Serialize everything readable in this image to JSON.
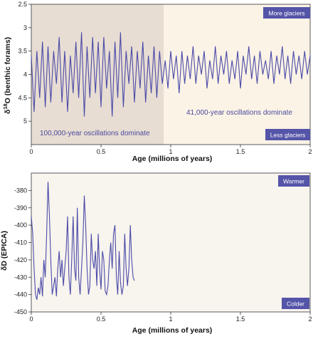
{
  "colors": {
    "line": "#4b4ba8",
    "tag_bg": "#5454a8",
    "shade_100k": "#e8ddd3",
    "shade_41k": "#fbf3e6",
    "panel2_bg": "#f8f4ee",
    "axis": "#333333"
  },
  "chart_data": [
    {
      "type": "line",
      "xlabel": "Age (millions of years)",
      "ylabel": "δ18O (benthic forams)",
      "ylabel_main": "δ",
      "ylabel_sup": "18",
      "ylabel_rest": "O (benthic forams)",
      "xlim": [
        0,
        2
      ],
      "ylim": [
        5.5,
        2.5
      ],
      "y_inverted": true,
      "xticks": [
        "0",
        "0.5",
        "1",
        "1.5",
        "2"
      ],
      "yticks": [
        "2.5",
        "3",
        "3.5",
        "4",
        "4.5",
        "5"
      ],
      "xtick_values": [
        0,
        0.5,
        1,
        1.5,
        2
      ],
      "ytick_values": [
        2.5,
        3,
        3.5,
        4,
        4.5,
        5
      ],
      "regions": [
        {
          "x_range": [
            0,
            0.95
          ],
          "label": "100,000-year oscillations dominate"
        },
        {
          "x_range": [
            0.95,
            2
          ],
          "label": "41,000-year oscillations dominate"
        }
      ],
      "tags": {
        "top": "More glaciers",
        "bottom": "Less glaciers"
      },
      "series": [
        {
          "x": [
            0,
            0.02,
            0.04,
            0.06,
            0.08,
            0.1,
            0.12,
            0.14,
            0.16,
            0.18,
            0.2,
            0.22,
            0.24,
            0.26,
            0.28,
            0.3,
            0.32,
            0.34,
            0.36,
            0.38,
            0.4,
            0.42,
            0.44,
            0.46,
            0.48,
            0.5,
            0.52,
            0.54,
            0.56,
            0.58,
            0.6,
            0.62,
            0.64,
            0.66,
            0.68,
            0.7,
            0.72,
            0.74,
            0.76,
            0.78,
            0.8,
            0.82,
            0.84,
            0.86,
            0.88,
            0.9,
            0.92,
            0.94,
            0.96,
            0.98,
            1.0,
            1.02,
            1.04,
            1.06,
            1.08,
            1.1,
            1.12,
            1.14,
            1.16,
            1.18,
            1.2,
            1.22,
            1.24,
            1.26,
            1.28,
            1.3,
            1.32,
            1.34,
            1.36,
            1.38,
            1.4,
            1.42,
            1.44,
            1.46,
            1.48,
            1.5,
            1.52,
            1.54,
            1.56,
            1.58,
            1.6,
            1.62,
            1.64,
            1.66,
            1.68,
            1.7,
            1.72,
            1.74,
            1.76,
            1.78,
            1.8,
            1.82,
            1.84,
            1.86,
            1.88,
            1.9,
            1.92,
            1.94,
            1.96,
            1.98,
            2.0
          ],
          "y": [
            3.6,
            4.8,
            3.5,
            4.5,
            3.3,
            4.7,
            3.4,
            4.6,
            3.5,
            4.2,
            3.2,
            4.6,
            3.5,
            4.8,
            3.6,
            4.4,
            3.3,
            4.5,
            3.1,
            4.9,
            3.4,
            4.5,
            3.2,
            4.4,
            3.3,
            4.7,
            3.2,
            4.3,
            3.5,
            4.9,
            3.3,
            4.5,
            3.1,
            4.7,
            3.5,
            4.2,
            3.4,
            4.6,
            3.5,
            4.3,
            3.3,
            4.6,
            3.6,
            4.4,
            3.4,
            4.5,
            3.5,
            4.2,
            3.7,
            4.3,
            3.5,
            4.1,
            3.6,
            4.4,
            3.5,
            4.2,
            3.6,
            4.1,
            3.4,
            4.2,
            3.6,
            4.0,
            3.5,
            4.3,
            3.7,
            4.1,
            3.4,
            4.2,
            3.6,
            4.0,
            3.5,
            4.2,
            3.7,
            4.1,
            3.5,
            4.3,
            3.6,
            4.0,
            3.4,
            4.1,
            3.6,
            4.2,
            3.5,
            4.0,
            3.7,
            4.1,
            3.5,
            4.2,
            3.6,
            4.0,
            3.4,
            4.1,
            3.6,
            4.2,
            3.5,
            4.0,
            3.6,
            4.1,
            3.5,
            4.0,
            3.6
          ]
        }
      ]
    },
    {
      "type": "line",
      "xlabel": "Age (millions of years)",
      "ylabel": "δD (EPICA)",
      "xlim": [
        0,
        2
      ],
      "ylim": [
        -450,
        -370
      ],
      "xticks": [
        "0",
        "0.5",
        "1",
        "1.5",
        "2"
      ],
      "yticks": [
        "-380",
        "-390",
        "-400",
        "-410",
        "-420",
        "-430",
        "-440",
        "-450"
      ],
      "xtick_values": [
        0,
        0.5,
        1,
        1.5,
        2
      ],
      "ytick_values": [
        -380,
        -390,
        -400,
        -410,
        -420,
        -430,
        -440,
        -450
      ],
      "tags": {
        "top": "Warmer",
        "bottom": "Colder"
      },
      "series": [
        {
          "x": [
            0,
            0.01,
            0.02,
            0.03,
            0.04,
            0.05,
            0.06,
            0.07,
            0.08,
            0.09,
            0.1,
            0.11,
            0.12,
            0.13,
            0.14,
            0.15,
            0.16,
            0.17,
            0.18,
            0.19,
            0.2,
            0.21,
            0.22,
            0.23,
            0.24,
            0.25,
            0.26,
            0.27,
            0.28,
            0.29,
            0.3,
            0.31,
            0.32,
            0.33,
            0.34,
            0.35,
            0.36,
            0.37,
            0.38,
            0.39,
            0.4,
            0.41,
            0.42,
            0.43,
            0.44,
            0.45,
            0.46,
            0.47,
            0.48,
            0.49,
            0.5,
            0.51,
            0.52,
            0.53,
            0.54,
            0.55,
            0.56,
            0.57,
            0.58,
            0.59,
            0.6,
            0.61,
            0.62,
            0.63,
            0.64,
            0.65,
            0.66,
            0.67,
            0.68,
            0.69,
            0.7,
            0.71,
            0.72,
            0.73,
            0.74
          ],
          "y": [
            -395,
            -405,
            -425,
            -440,
            -443,
            -436,
            -440,
            -430,
            -441,
            -420,
            -430,
            -405,
            -375,
            -395,
            -420,
            -440,
            -435,
            -430,
            -441,
            -425,
            -415,
            -430,
            -420,
            -435,
            -425,
            -415,
            -395,
            -430,
            -440,
            -420,
            -395,
            -425,
            -432,
            -390,
            -430,
            -440,
            -425,
            -410,
            -383,
            -400,
            -425,
            -440,
            -435,
            -405,
            -420,
            -425,
            -415,
            -435,
            -405,
            -425,
            -437,
            -415,
            -420,
            -438,
            -440,
            -435,
            -420,
            -410,
            -425,
            -405,
            -400,
            -430,
            -440,
            -415,
            -433,
            -440,
            -435,
            -405,
            -425,
            -435,
            -425,
            -400,
            -420,
            -430,
            -432
          ]
        }
      ]
    }
  ]
}
